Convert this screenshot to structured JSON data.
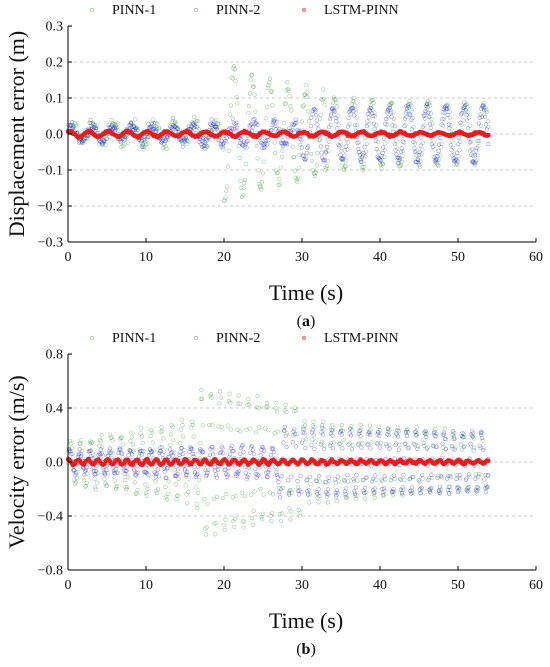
{
  "chart_data": [
    {
      "panel": "(a)",
      "panel_letter": "a",
      "type": "scatter",
      "xlabel": "Time (s)",
      "ylabel": "Displacement error (m)",
      "xlim": [
        0,
        60
      ],
      "ylim": [
        -0.3,
        0.3
      ],
      "xticks": [
        0,
        10,
        20,
        30,
        40,
        50,
        60
      ],
      "yticks": [
        0.3,
        0.2,
        0.1,
        0.0,
        -0.1,
        -0.2,
        -0.3
      ],
      "ytick_labels": [
        "0.3",
        "0.2",
        "0.1",
        "0.0",
        "−0.1",
        "−0.2",
        "−0.3"
      ],
      "grid": "horizontal dashed",
      "legend_position": "top",
      "series": [
        {
          "name": "PINN-1",
          "color": "#3a9a3a",
          "segments": [
            {
              "t0": 0,
              "t1": 20,
              "period": 2.6,
              "amp_start": 0.02,
              "amp_end": 0.03,
              "noise": 0.03
            },
            {
              "t0": 20,
              "t1": 33,
              "period": 2.3,
              "amp_start": 0.19,
              "amp_end": 0.1,
              "noise": 0.03
            },
            {
              "t0": 33,
              "t1": 54,
              "period": 2.4,
              "amp_start": 0.1,
              "amp_end": 0.08,
              "noise": 0.01
            }
          ]
        },
        {
          "name": "PINN-2",
          "color": "#2a2ae0",
          "segments": [
            {
              "t0": 0,
              "t1": 30,
              "period": 2.6,
              "amp_start": 0.02,
              "amp_end": 0.03,
              "noise": 0.025
            },
            {
              "t0": 30,
              "t1": 54,
              "period": 2.4,
              "amp_start": 0.07,
              "amp_end": 0.08,
              "noise": 0.012
            }
          ]
        },
        {
          "name": "LSTM-PINN",
          "color": "#e02020",
          "segments": [
            {
              "t0": 0,
              "t1": 54,
              "period": 2.5,
              "amp_start": 0.008,
              "amp_end": 0.004,
              "noise": 0.004
            }
          ]
        }
      ]
    },
    {
      "panel": "(b)",
      "panel_letter": "b",
      "type": "scatter",
      "xlabel": "Time (s)",
      "ylabel": "Velocity error (m/s)",
      "xlim": [
        0,
        60
      ],
      "ylim": [
        -0.8,
        0.8
      ],
      "xticks": [
        0,
        10,
        20,
        30,
        40,
        50,
        60
      ],
      "yticks": [
        0.8,
        0.4,
        0.0,
        -0.4,
        -0.8
      ],
      "ytick_labels": [
        "0.8",
        "0.4",
        "0.0",
        "−0.4",
        "−0.8"
      ],
      "grid": "horizontal dashed",
      "legend_position": "top",
      "series": [
        {
          "name": "PINN-1",
          "color": "#3a9a3a",
          "segments": [
            {
              "t0": 0,
              "t1": 17,
              "period": 1.3,
              "amp_start": 0.15,
              "amp_end": 0.3,
              "noise": 0.05
            },
            {
              "t0": 17,
              "t1": 30,
              "period": 1.2,
              "amp_start": 0.55,
              "amp_end": 0.4,
              "noise": 0.05
            },
            {
              "t0": 30,
              "t1": 54,
              "period": 1.2,
              "amp_start": 0.3,
              "amp_end": 0.2,
              "noise": 0.03
            }
          ]
        },
        {
          "name": "PINN-2",
          "color": "#2a2ae0",
          "segments": [
            {
              "t0": 0,
              "t1": 27,
              "period": 1.3,
              "amp_start": 0.08,
              "amp_end": 0.12,
              "noise": 0.04
            },
            {
              "t0": 27,
              "t1": 54,
              "period": 1.2,
              "amp_start": 0.25,
              "amp_end": 0.22,
              "noise": 0.02
            }
          ]
        },
        {
          "name": "LSTM-PINN",
          "color": "#e02020",
          "segments": [
            {
              "t0": 0,
              "t1": 54,
              "period": 1.25,
              "amp_start": 0.02,
              "amp_end": 0.01,
              "noise": 0.01
            }
          ]
        }
      ]
    }
  ],
  "legend_marker_colors": {
    "PINN-1": "#3a9a3a",
    "PINN-2": "#2a2ae0",
    "LSTM-PINN": "#e02020"
  }
}
